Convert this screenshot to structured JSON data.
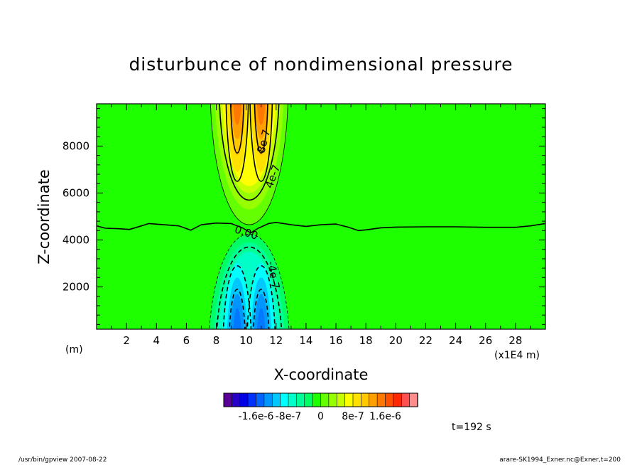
{
  "chart_data": {
    "type": "contour",
    "title": "disturbunce of nondimensional pressure",
    "xlabel": "X-coordinate",
    "ylabel": "Z-coordinate",
    "x_unit": "(x1E4 m)",
    "y_unit": "(m)",
    "xlim": [
      0,
      30
    ],
    "ylim": [
      200,
      9800
    ],
    "x_ticks": [
      2,
      4,
      6,
      8,
      10,
      12,
      14,
      16,
      18,
      20,
      22,
      24,
      26,
      28
    ],
    "y_ticks": [
      2000,
      4000,
      6000,
      8000
    ],
    "contour_labels": [
      "8e-7",
      "4e-7",
      "0.00",
      "-4e-7"
    ],
    "colorbar": {
      "ticks": [
        "-1.6e-6",
        "-8e-7",
        "0",
        "8e-7",
        "1.6e-6"
      ],
      "tick_values": [
        -1.6e-06,
        -8e-07,
        0,
        8e-07,
        1.6e-06
      ],
      "range": [
        -2.4e-06,
        2.4e-06
      ],
      "colors": [
        "#5a0096",
        "#2800c8",
        "#0000e6",
        "#0032ff",
        "#0064ff",
        "#0096ff",
        "#00c8ff",
        "#00ffff",
        "#00ffc8",
        "#00ff96",
        "#00ff64",
        "#1eff00",
        "#64ff00",
        "#96ff00",
        "#c8ff00",
        "#ffff00",
        "#ffe100",
        "#ffc800",
        "#ffa000",
        "#ff7800",
        "#ff5000",
        "#ff2800",
        "#ff5050",
        "#ff8c8c"
      ]
    },
    "colors": {
      "background_field": "#1eff00",
      "positive_max": "#ff6400",
      "negative_min": "#0078ff"
    },
    "features": {
      "positive_anomaly": {
        "x_range": [
          8,
          12.5
        ],
        "z_range": [
          4600,
          9800
        ],
        "cores_x": [
          9.4,
          11.0
        ]
      },
      "negative_anomaly": {
        "x_range": [
          7.7,
          13
        ],
        "z_range": [
          200,
          4200
        ],
        "cores_x": [
          9.4,
          11.0
        ]
      },
      "zero_contour_z_approx": 4600
    }
  },
  "time_label": "t=192 s",
  "footer_left": "/usr/bin/gpview  2007-08-22",
  "footer_right": "arare-SK1994_Exner.nc@Exner,t=200"
}
